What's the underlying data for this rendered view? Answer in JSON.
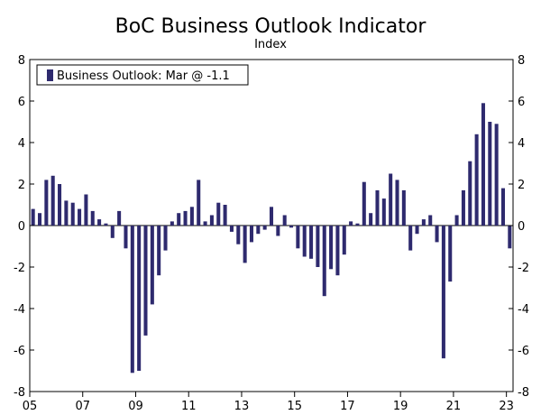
{
  "chart_data": {
    "type": "bar",
    "title": "BoC Business Outlook Indicator",
    "subtitle": "Index",
    "xlabel": "",
    "ylabel": "",
    "ylim": [
      -8,
      8
    ],
    "y_ticks": [
      "8",
      "6",
      "4",
      "2",
      "0",
      "-2",
      "-4",
      "-6",
      "-8"
    ],
    "y_tick_values": [
      8,
      6,
      4,
      2,
      0,
      -2,
      -4,
      -6,
      -8
    ],
    "x_ticks": [
      "05",
      "07",
      "09",
      "11",
      "13",
      "15",
      "17",
      "19",
      "21",
      "23"
    ],
    "x_tick_values": [
      2005,
      2007,
      2009,
      2011,
      2013,
      2015,
      2017,
      2019,
      2021,
      2023
    ],
    "x_range": [
      2005.0,
      2023.25
    ],
    "bar_color": "#2e2a6e",
    "legend": {
      "label": "Business Outlook: Mar @ -1.1",
      "position": "top-left"
    },
    "categories": [
      "2005Q1",
      "2005Q2",
      "2005Q3",
      "2005Q4",
      "2006Q1",
      "2006Q2",
      "2006Q3",
      "2006Q4",
      "2007Q1",
      "2007Q2",
      "2007Q3",
      "2007Q4",
      "2008Q1",
      "2008Q2",
      "2008Q3",
      "2008Q4",
      "2009Q1",
      "2009Q2",
      "2009Q3",
      "2009Q4",
      "2010Q1",
      "2010Q2",
      "2010Q3",
      "2010Q4",
      "2011Q1",
      "2011Q2",
      "2011Q3",
      "2011Q4",
      "2012Q1",
      "2012Q2",
      "2012Q3",
      "2012Q4",
      "2013Q1",
      "2013Q2",
      "2013Q3",
      "2013Q4",
      "2014Q1",
      "2014Q2",
      "2014Q3",
      "2014Q4",
      "2015Q1",
      "2015Q2",
      "2015Q3",
      "2015Q4",
      "2016Q1",
      "2016Q2",
      "2016Q3",
      "2016Q4",
      "2017Q1",
      "2017Q2",
      "2017Q3",
      "2017Q4",
      "2018Q1",
      "2018Q2",
      "2018Q3",
      "2018Q4",
      "2019Q1",
      "2019Q2",
      "2019Q3",
      "2019Q4",
      "2020Q1",
      "2020Q2",
      "2020Q3",
      "2020Q4",
      "2021Q1",
      "2021Q2",
      "2021Q3",
      "2021Q4",
      "2022Q1",
      "2022Q2",
      "2022Q3",
      "2022Q4",
      "2023Q1"
    ],
    "values": [
      0.8,
      0.6,
      2.2,
      2.4,
      2.0,
      1.2,
      1.1,
      0.8,
      1.5,
      0.7,
      0.3,
      0.1,
      -0.6,
      0.7,
      -1.1,
      -7.1,
      -7.0,
      -5.3,
      -3.8,
      -2.4,
      -1.2,
      0.2,
      0.6,
      0.7,
      0.9,
      2.2,
      0.2,
      0.5,
      1.1,
      1.0,
      -0.3,
      -0.9,
      -1.8,
      -0.8,
      -0.4,
      -0.2,
      0.9,
      -0.5,
      0.5,
      -0.1,
      -1.1,
      -1.5,
      -1.6,
      -2.0,
      -3.4,
      -2.1,
      -2.4,
      -1.4,
      0.2,
      0.1,
      2.1,
      0.6,
      1.7,
      1.3,
      2.5,
      2.2,
      1.7,
      -1.2,
      -0.4,
      0.3,
      0.5,
      -0.8,
      -6.4,
      -2.7,
      0.5,
      1.7,
      3.1,
      4.4,
      5.9,
      5.0,
      4.9,
      1.8,
      -1.1
    ]
  }
}
